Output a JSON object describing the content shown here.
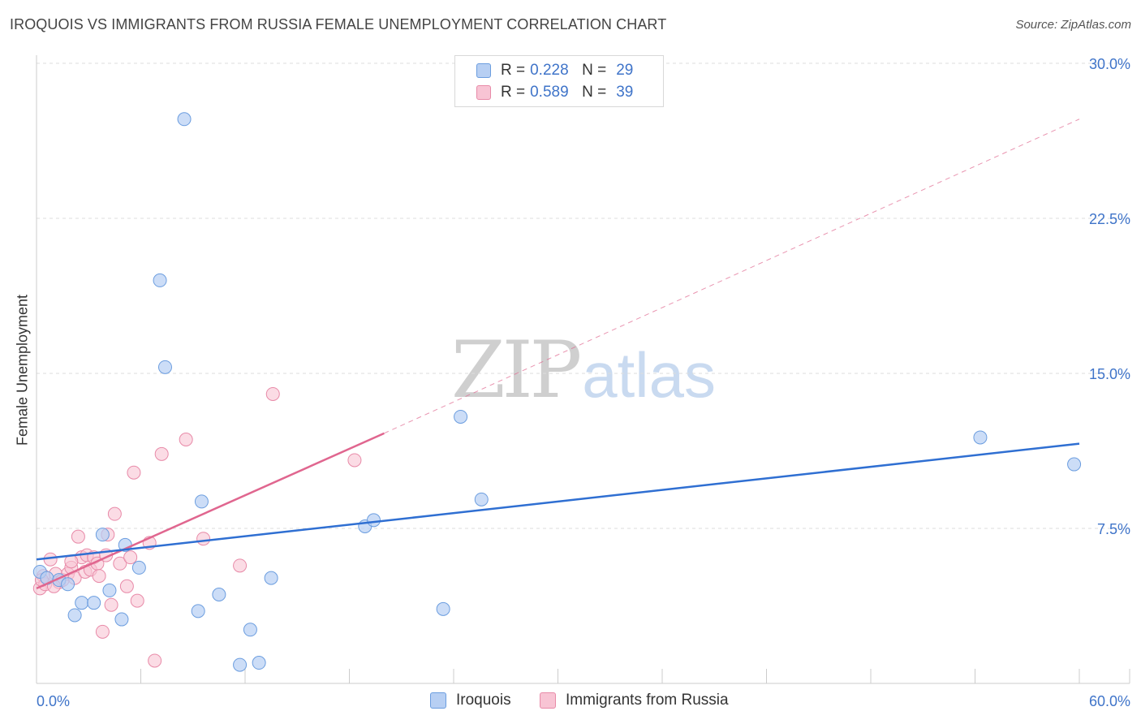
{
  "title": "IROQUOIS VS IMMIGRANTS FROM RUSSIA FEMALE UNEMPLOYMENT CORRELATION CHART",
  "source": "Source: ZipAtlas.com",
  "watermark": {
    "zip": "ZIP",
    "atlas": "atlas"
  },
  "legend": {
    "rows": [
      {
        "r_label": "R =",
        "r_value": "0.228",
        "n_label": "N =",
        "n_value": "29"
      },
      {
        "r_label": "R =",
        "r_value": "0.589",
        "n_label": "N =",
        "n_value": "39"
      }
    ]
  },
  "bottom_legend": [
    "Iroquois",
    "Immigrants from Russia"
  ],
  "colors": {
    "blue_fill": "#b7cff3",
    "blue_stroke": "#6b9ddf",
    "blue_line": "#2f6fd2",
    "pink_fill": "#f8c4d4",
    "pink_stroke": "#e88aa8",
    "pink_line": "#e0668f",
    "axis_label": "#3f74c9",
    "grid": "#dddddd"
  },
  "chart_data": {
    "type": "scatter",
    "title": "IROQUOIS VS IMMIGRANTS FROM RUSSIA FEMALE UNEMPLOYMENT CORRELATION CHART",
    "xlabel": "",
    "ylabel": "Female Unemployment",
    "xlim": [
      0,
      60
    ],
    "ylim": [
      0,
      30
    ],
    "x_tick_labels": [
      "0.0%",
      "60.0%"
    ],
    "y_ticks": [
      7.5,
      15.0,
      22.5,
      30.0
    ],
    "y_tick_labels": [
      "7.5%",
      "15.0%",
      "22.5%",
      "30.0%"
    ],
    "grid": true,
    "legend_position": "top-center",
    "series": [
      {
        "name": "Iroquois",
        "r": 0.228,
        "n": 29,
        "points": [
          [
            0.2,
            5.4
          ],
          [
            0.6,
            5.1
          ],
          [
            1.3,
            5.0
          ],
          [
            1.8,
            4.8
          ],
          [
            2.2,
            3.3
          ],
          [
            2.6,
            3.9
          ],
          [
            3.3,
            3.9
          ],
          [
            3.8,
            7.2
          ],
          [
            4.2,
            4.5
          ],
          [
            4.9,
            3.1
          ],
          [
            5.1,
            6.7
          ],
          [
            5.9,
            5.6
          ],
          [
            7.1,
            19.5
          ],
          [
            7.4,
            15.3
          ],
          [
            8.5,
            27.3
          ],
          [
            9.3,
            3.5
          ],
          [
            9.5,
            8.8
          ],
          [
            10.5,
            4.3
          ],
          [
            11.7,
            0.9
          ],
          [
            12.3,
            2.6
          ],
          [
            12.8,
            1.0
          ],
          [
            13.5,
            5.1
          ],
          [
            18.9,
            7.6
          ],
          [
            19.4,
            7.9
          ],
          [
            23.4,
            3.6
          ],
          [
            24.4,
            12.9
          ],
          [
            25.6,
            8.9
          ],
          [
            54.3,
            11.9
          ],
          [
            59.7,
            10.6
          ]
        ],
        "trend": {
          "x": [
            0,
            60
          ],
          "y": [
            6.0,
            11.6
          ]
        }
      },
      {
        "name": "Immigrants from Russia",
        "r": 0.589,
        "n": 39,
        "points": [
          [
            0.2,
            4.6
          ],
          [
            0.4,
            5.2
          ],
          [
            0.5,
            4.8
          ],
          [
            0.8,
            6.0
          ],
          [
            1.1,
            5.3
          ],
          [
            1.3,
            4.9
          ],
          [
            1.5,
            5.0
          ],
          [
            1.8,
            5.3
          ],
          [
            2.0,
            5.6
          ],
          [
            2.2,
            5.1
          ],
          [
            2.4,
            7.1
          ],
          [
            2.6,
            6.1
          ],
          [
            2.8,
            5.4
          ],
          [
            2.9,
            6.2
          ],
          [
            3.1,
            5.5
          ],
          [
            3.3,
            6.1
          ],
          [
            3.5,
            5.8
          ],
          [
            3.6,
            5.2
          ],
          [
            3.8,
            2.5
          ],
          [
            4.0,
            6.2
          ],
          [
            4.1,
            7.2
          ],
          [
            4.3,
            3.8
          ],
          [
            4.5,
            8.2
          ],
          [
            4.8,
            5.8
          ],
          [
            5.2,
            4.7
          ],
          [
            5.4,
            6.1
          ],
          [
            5.6,
            10.2
          ],
          [
            5.8,
            4.0
          ],
          [
            6.5,
            6.8
          ],
          [
            6.8,
            1.1
          ],
          [
            7.2,
            11.1
          ],
          [
            8.6,
            11.8
          ],
          [
            9.6,
            7.0
          ],
          [
            11.7,
            5.7
          ],
          [
            13.6,
            14.0
          ],
          [
            18.3,
            10.8
          ],
          [
            0.3,
            5.0
          ],
          [
            1.0,
            4.7
          ],
          [
            2.0,
            5.9
          ]
        ],
        "trend": {
          "x": [
            0,
            20
          ],
          "y": [
            4.6,
            12.1
          ]
        },
        "trend_extended": {
          "x": [
            20,
            60
          ],
          "y": [
            12.1,
            27.3
          ]
        }
      }
    ]
  }
}
